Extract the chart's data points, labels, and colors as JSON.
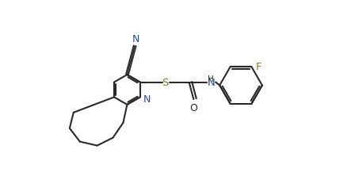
{
  "background_color": "#ffffff",
  "line_color": "#2a2a2a",
  "atom_colors": {
    "N": "#2b4a8c",
    "S": "#8b7a00",
    "O": "#2a2a2a",
    "F": "#8b7a00",
    "H": "#2a2a2a"
  },
  "figsize": [
    4.53,
    2.28
  ],
  "dpi": 100
}
